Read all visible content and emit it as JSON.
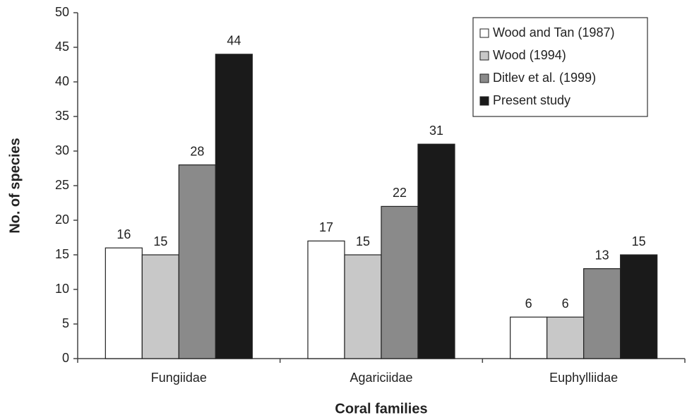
{
  "chart_data": {
    "type": "bar",
    "categories": [
      "Fungiidae",
      "Agariciidae",
      "Euphylliidae"
    ],
    "series": [
      {
        "name": "Wood and Tan (1987)",
        "color": "#ffffff",
        "values": [
          16,
          17,
          6
        ]
      },
      {
        "name": "Wood (1994)",
        "color": "#c8c8c8",
        "values": [
          15,
          15,
          6
        ]
      },
      {
        "name": "Ditlev et al. (1999)",
        "color": "#8a8a8a",
        "values": [
          28,
          22,
          13
        ]
      },
      {
        "name": "Present study",
        "color": "#1a1a1a",
        "values": [
          44,
          31,
          15
        ]
      }
    ],
    "xlabel": "Coral families",
    "ylabel": "No. of species",
    "ylim": [
      0,
      50
    ],
    "yticks": [
      0,
      5,
      10,
      15,
      20,
      25,
      30,
      35,
      40,
      45,
      50
    ],
    "legend": "upper right",
    "grid": false
  }
}
